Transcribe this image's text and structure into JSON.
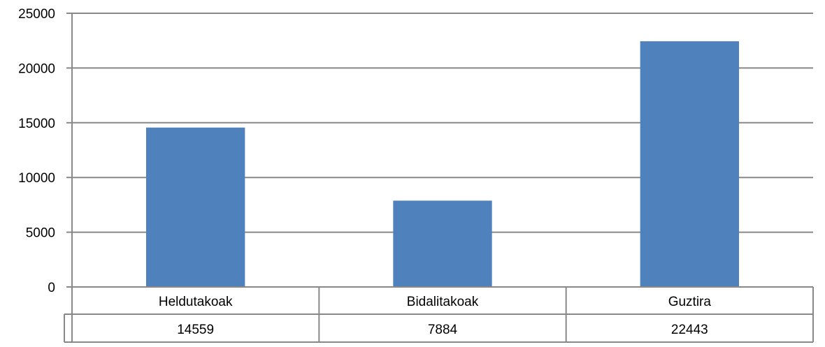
{
  "chart_data": {
    "type": "bar",
    "title": "",
    "xlabel": "",
    "ylabel": "",
    "categories": [
      "Heldutakoak",
      "Bidalitakoak",
      "Guztira"
    ],
    "values": [
      14559,
      7884,
      22443
    ],
    "value_labels": [
      "14559",
      "7884",
      "22443"
    ],
    "y_ticks": [
      "0",
      "5000",
      "10000",
      "15000",
      "20000",
      "25000"
    ],
    "ylim": [
      0,
      25000
    ],
    "grid": true,
    "legend": "none",
    "data_table": true
  },
  "colors": {
    "bar": "#4f81bd",
    "grid": "#888888",
    "axis": "#888888",
    "text": "#000000"
  }
}
